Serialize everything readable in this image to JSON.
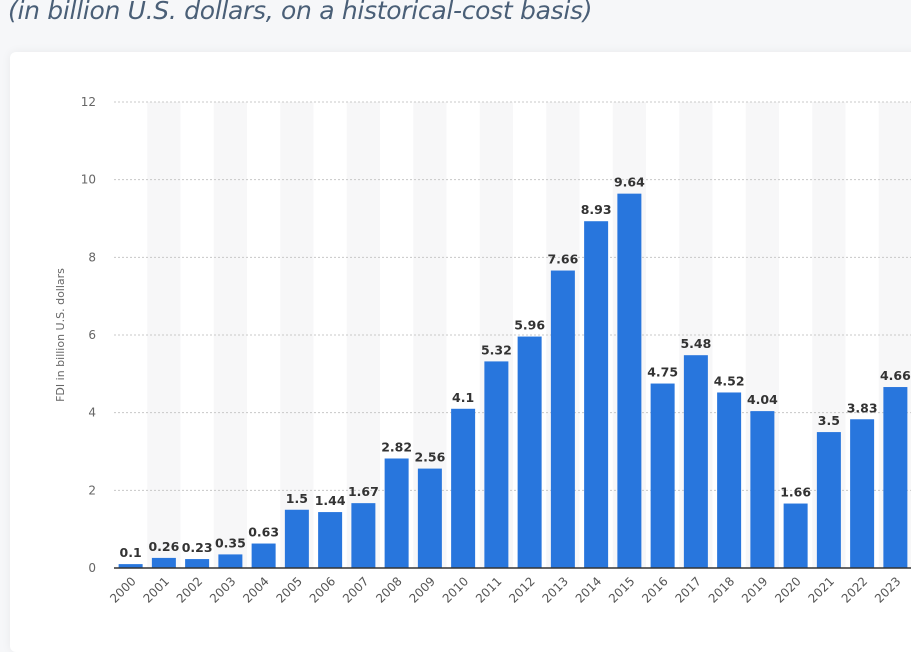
{
  "subtitle": "(in billion U.S. dollars, on a historical-cost basis)",
  "chart_data": {
    "type": "bar",
    "title": "",
    "xlabel": "",
    "ylabel": "FDI in billion U.S. dollars",
    "ylim": [
      0,
      12
    ],
    "yticks": [
      0,
      2,
      4,
      6,
      8,
      10,
      12
    ],
    "grid": true,
    "bar_color": "#2876dd",
    "categories": [
      "2000",
      "2001",
      "2002",
      "2003",
      "2004",
      "2005",
      "2006",
      "2007",
      "2008",
      "2009",
      "2010",
      "2011",
      "2012",
      "2013",
      "2014",
      "2015",
      "2016",
      "2017",
      "2018",
      "2019",
      "2020",
      "2021",
      "2022",
      "2023"
    ],
    "values": [
      0.1,
      0.26,
      0.23,
      0.35,
      0.63,
      1.5,
      1.44,
      1.67,
      2.82,
      2.56,
      4.1,
      5.32,
      5.96,
      7.66,
      8.93,
      9.64,
      4.75,
      5.48,
      4.52,
      4.04,
      1.66,
      3.5,
      3.83,
      4.66
    ]
  }
}
